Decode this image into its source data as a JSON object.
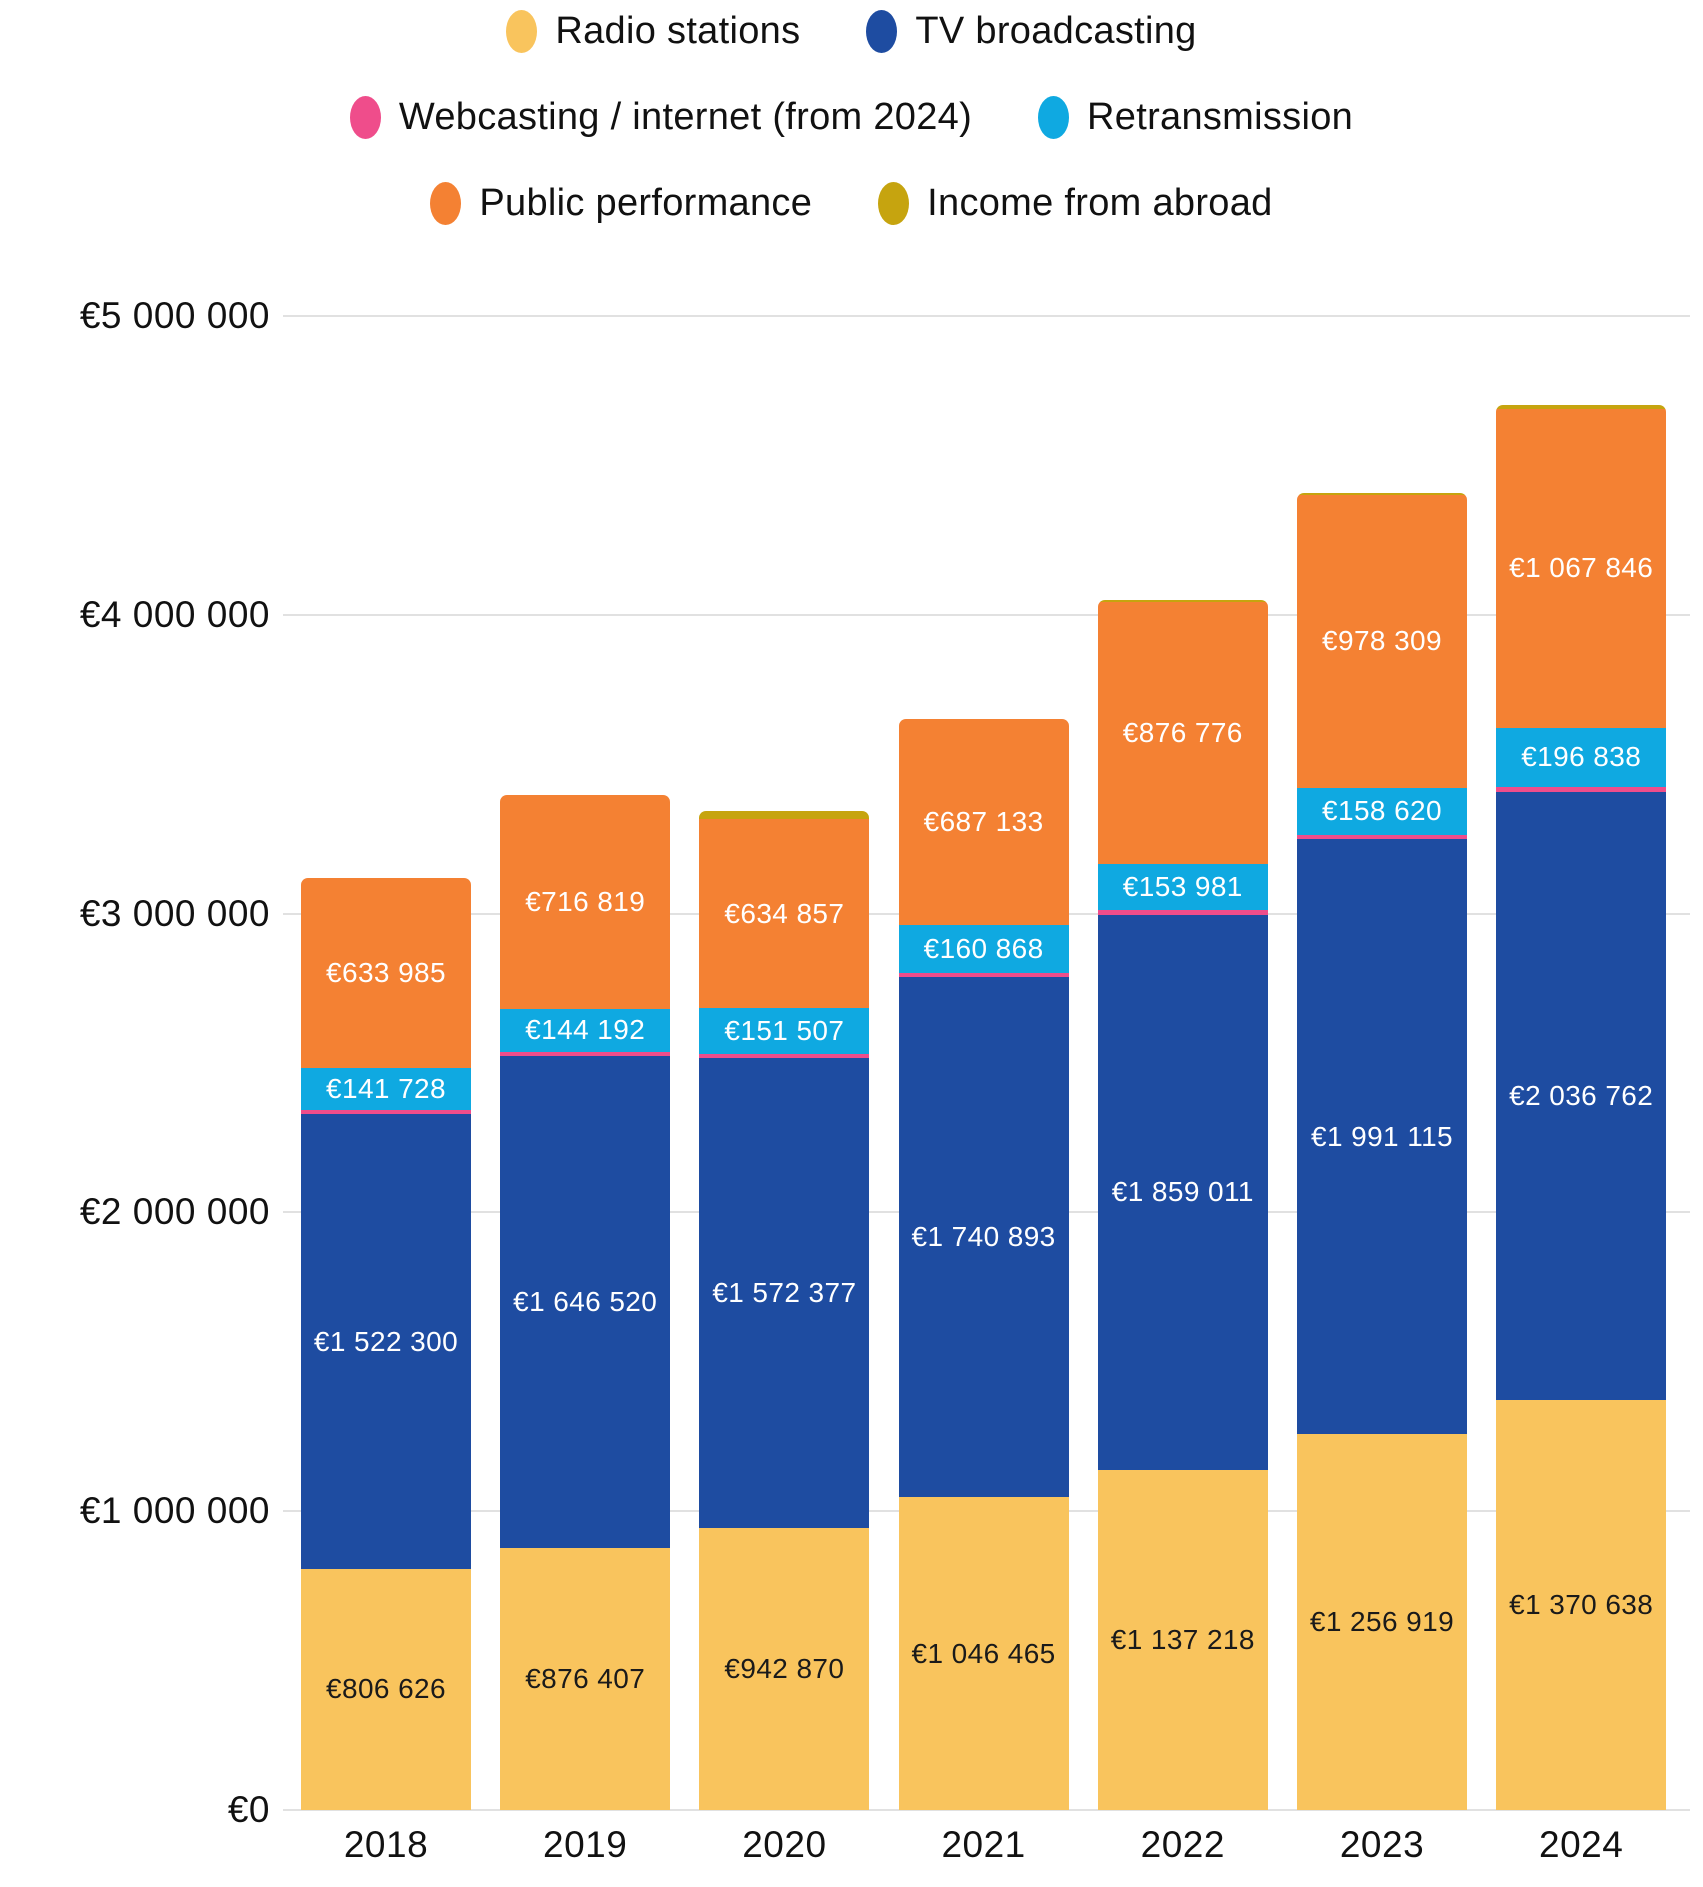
{
  "chart_data": {
    "type": "bar",
    "stacked": true,
    "title": "",
    "categories": [
      "2018",
      "2019",
      "2020",
      "2021",
      "2022",
      "2023",
      "2024"
    ],
    "y_ticks": [
      "€0",
      "€1 000 000",
      "€2 000 000",
      "€3 000 000",
      "€4 000 000",
      "€5 000 000"
    ],
    "ylim": [
      0,
      5000000
    ],
    "grid": true,
    "legend_position": "top",
    "series": [
      {
        "name": "Radio stations",
        "color": "#F9C45D",
        "label_color": "#1A1A1A",
        "values": [
          806626,
          876407,
          942870,
          1046465,
          1137218,
          1256919,
          1370638
        ],
        "labels": [
          "€806 626",
          "€876 407",
          "€942 870",
          "€1 046 465",
          "€1 137 218",
          "€1 256 919",
          "€1 370 638"
        ]
      },
      {
        "name": "TV broadcasting",
        "color": "#1E4CA1",
        "label_color": "#FFFFFF",
        "values": [
          1522300,
          1646520,
          1572377,
          1740893,
          1859011,
          1991115,
          2036762
        ],
        "labels": [
          "€1 522 300",
          "€1 646 520",
          "€1 572 377",
          "€1 740 893",
          "€1 859 011",
          "€1 991 115",
          "€2 036 762"
        ]
      },
      {
        "name": "Webcasting / internet (from 2024)",
        "color": "#EF4D8B",
        "label_color": "#FFFFFF",
        "estimated": true,
        "values": [
          14000,
          14000,
          16000,
          15000,
          15000,
          15000,
          17000
        ],
        "labels": [
          null,
          null,
          null,
          null,
          null,
          null,
          null
        ]
      },
      {
        "name": "Retransmission",
        "color": "#0FA9E1",
        "label_color": "#FFFFFF",
        "values": [
          141728,
          144192,
          151507,
          160868,
          153981,
          158620,
          196838
        ],
        "labels": [
          "€141 728",
          "€144 192",
          "€151 507",
          "€160 868",
          "€153 981",
          "€158 620",
          "€196 838"
        ]
      },
      {
        "name": "Public performance",
        "color": "#F48133",
        "label_color": "#FFFFFF",
        "values": [
          633985,
          716819,
          634857,
          687133,
          876776,
          978309,
          1067846
        ],
        "labels": [
          "€633 985",
          "€716 819",
          "€634 857",
          "€687 133",
          "€876 776",
          "€978 309",
          "€1 067 846"
        ]
      },
      {
        "name": "Income from abroad",
        "color": "#C6A40F",
        "label_color": "#FFFFFF",
        "estimated": true,
        "values": [
          0,
          0,
          26000,
          0,
          9000,
          9000,
          12000
        ],
        "labels": [
          null,
          null,
          null,
          null,
          null,
          null,
          null
        ]
      }
    ]
  }
}
